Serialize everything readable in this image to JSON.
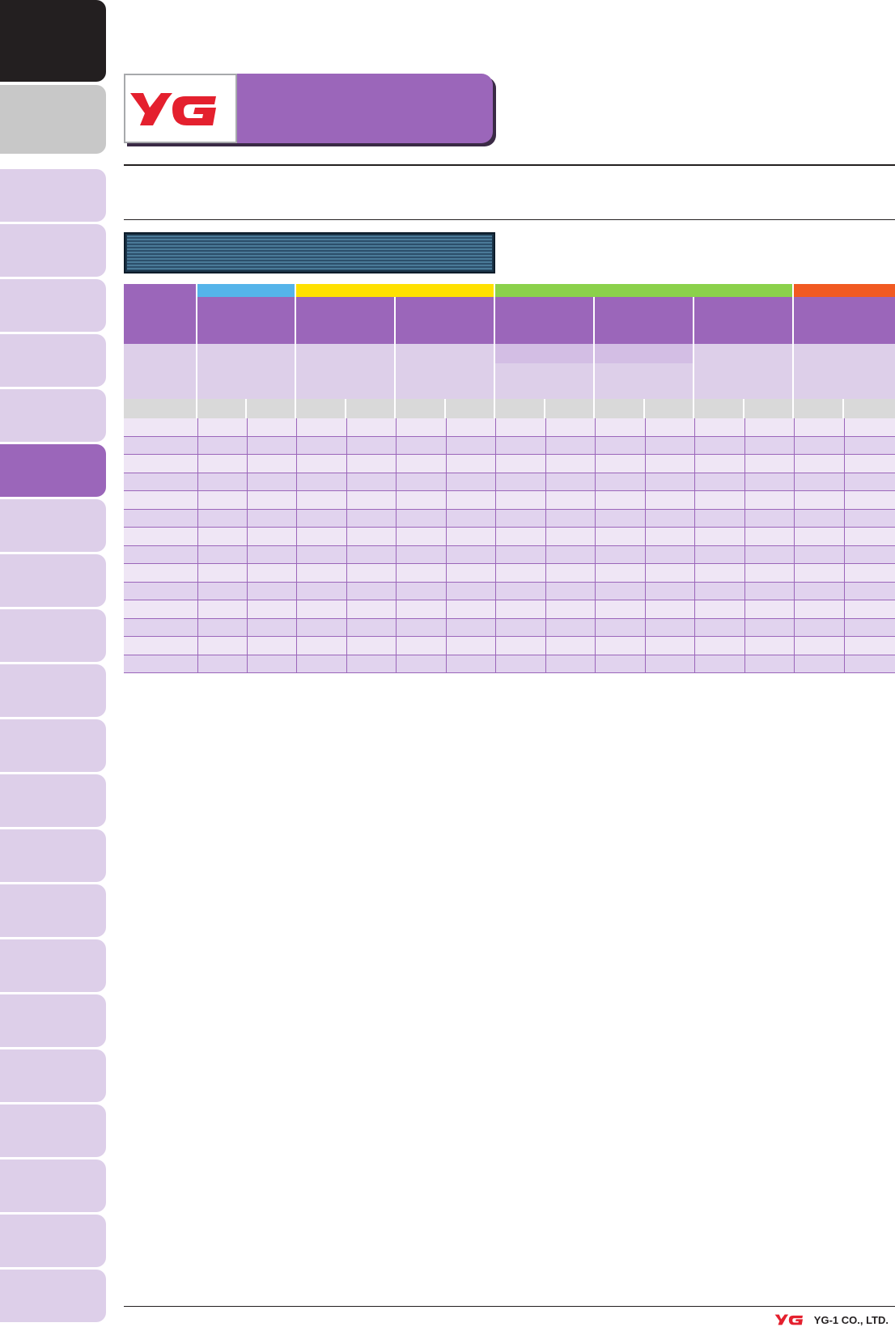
{
  "brand": {
    "logo_text": "YG",
    "logo_color": "#e4202e",
    "accent_color": "#9b66ba"
  },
  "footer": {
    "company": "YG-1 CO., LTD."
  },
  "table": {
    "material_groups": [
      {
        "color": "#55b4ea",
        "span_columns": 1
      },
      {
        "color": "#ffe100",
        "span_columns": 2
      },
      {
        "color": "#8bd14b",
        "span_columns": 3
      },
      {
        "color": "#f15a22",
        "span_columns": 1
      }
    ],
    "data_row_count": 14
  }
}
